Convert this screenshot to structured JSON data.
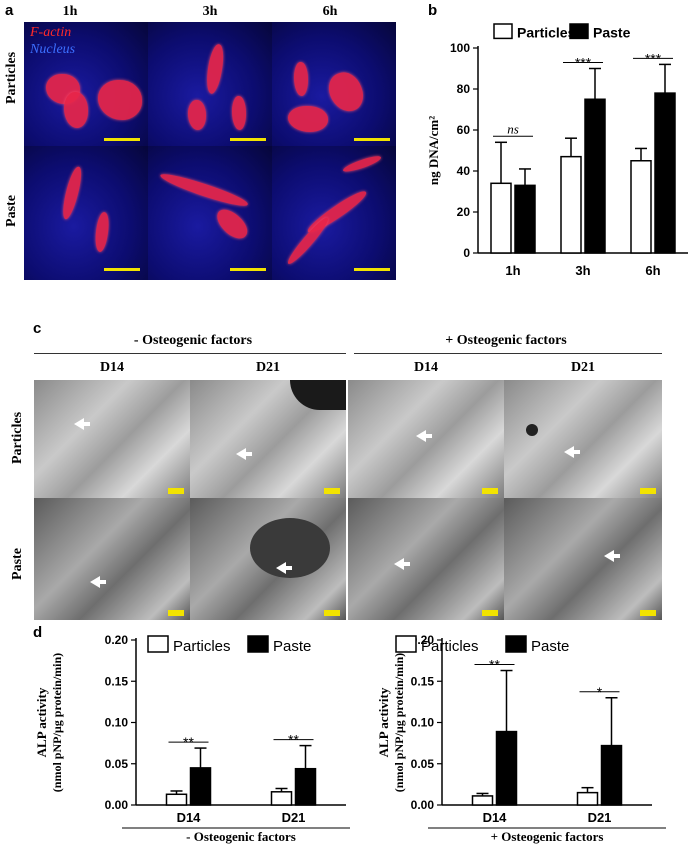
{
  "panel_a": {
    "letter": "a",
    "legend_factin": "F-actin",
    "legend_nucleus": "Nucleus",
    "col_headers": [
      "1h",
      "3h",
      "6h"
    ],
    "row_headers": [
      "Particles",
      "Paste"
    ]
  },
  "panel_b": {
    "letter": "b",
    "chart_data": {
      "type": "bar",
      "categories": [
        "1h",
        "3h",
        "6h"
      ],
      "series": [
        {
          "name": "Particles",
          "values": [
            34,
            47,
            45
          ],
          "errors": [
            20,
            9,
            6
          ],
          "fill": "#ffffff"
        },
        {
          "name": "Paste",
          "values": [
            33,
            75,
            78
          ],
          "errors": [
            8,
            15,
            14
          ],
          "fill": "#000000"
        }
      ],
      "xlabel": "",
      "ylabel": "ng DNA/cm²",
      "ylim": [
        0,
        100
      ],
      "yticks": [
        "0",
        "20",
        "40",
        "60",
        "80",
        "100"
      ],
      "significance": [
        "ns",
        "***",
        "***"
      ],
      "legend_position": "top"
    }
  },
  "panel_c": {
    "letter": "c",
    "group_minus": "- Osteogenic factors",
    "group_plus": "+ Osteogenic factors",
    "col_headers": [
      "D14",
      "D21",
      "D14",
      "D21"
    ],
    "row_headers": [
      "Particles",
      "Paste"
    ]
  },
  "panel_d": {
    "letter": "d",
    "chart_data": [
      {
        "type": "bar",
        "categories": [
          "D14",
          "D21"
        ],
        "series": [
          {
            "name": "Particles",
            "values": [
              0.013,
              0.016
            ],
            "errors": [
              0.004,
              0.004
            ],
            "fill": "#ffffff"
          },
          {
            "name": "Paste",
            "values": [
              0.045,
              0.044
            ],
            "errors": [
              0.024,
              0.028
            ],
            "fill": "#000000"
          }
        ],
        "xlabel": "- Osteogenic factors",
        "ylabel": "ALP activity",
        "ylabel2": "(nmol pNP/µg protein/min)",
        "ylim": [
          0,
          0.2
        ],
        "yticks": [
          "0.00",
          "0.05",
          "0.10",
          "0.15",
          "0.20"
        ],
        "significance": [
          "**",
          "**"
        ],
        "legend_position": "top"
      },
      {
        "type": "bar",
        "categories": [
          "D14",
          "D21"
        ],
        "series": [
          {
            "name": "Particles",
            "values": [
              0.011,
              0.015
            ],
            "errors": [
              0.003,
              0.006
            ],
            "fill": "#ffffff"
          },
          {
            "name": "Paste",
            "values": [
              0.089,
              0.072
            ],
            "errors": [
              0.074,
              0.058
            ],
            "fill": "#000000"
          }
        ],
        "xlabel": "+ Osteogenic factors",
        "ylabel": "ALP activity",
        "ylabel2": "(nmol pNP/µg protein/min)",
        "ylim": [
          0,
          0.2
        ],
        "yticks": [
          "0.00",
          "0.05",
          "0.10",
          "0.15",
          "0.20"
        ],
        "significance": [
          "**",
          "*"
        ],
        "legend_position": "top"
      }
    ]
  }
}
